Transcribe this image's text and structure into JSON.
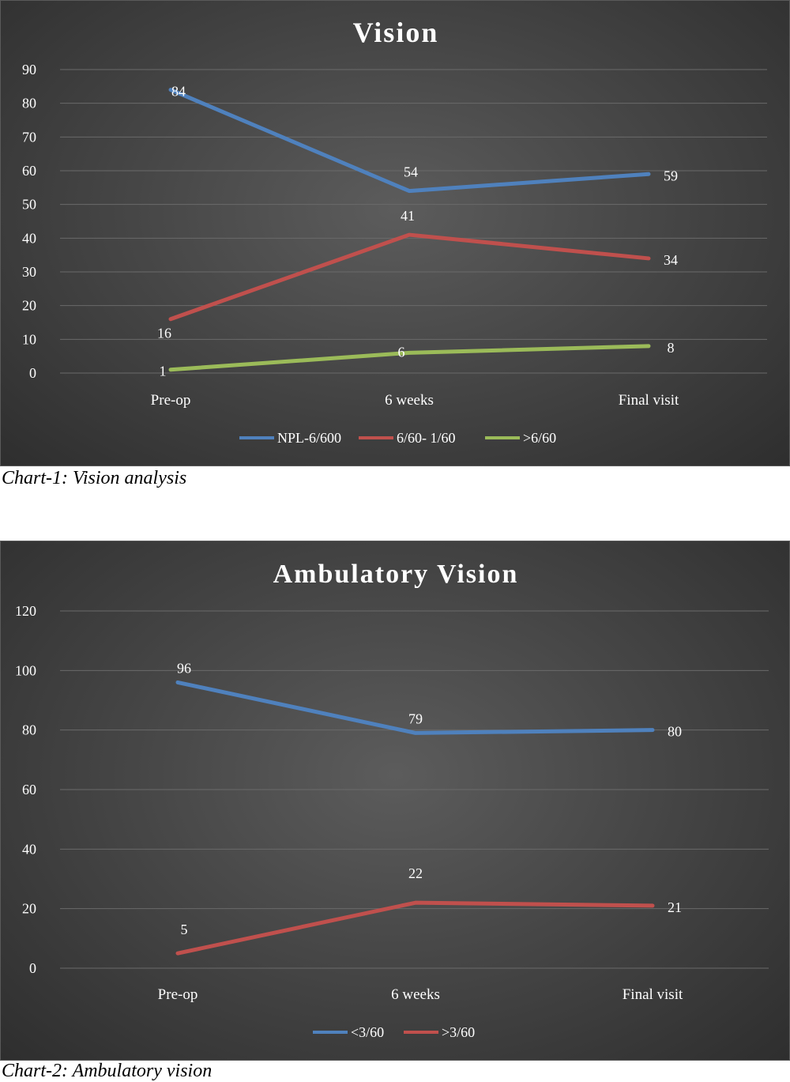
{
  "chart_data": [
    {
      "type": "line",
      "title": "Vision",
      "caption": "Chart-1: Vision analysis",
      "categories": [
        "Pre-op",
        "6 weeks",
        "Final visit"
      ],
      "series": [
        {
          "name": "NPL-6/600",
          "values": [
            84,
            54,
            59
          ],
          "color": "#4f81bd"
        },
        {
          "name": "6/60- 1/60",
          "values": [
            16,
            41,
            34
          ],
          "color": "#c0504d"
        },
        {
          "name": ">6/60",
          "values": [
            1,
            6,
            8
          ],
          "color": "#9bbb59"
        }
      ],
      "ylim": [
        0,
        90
      ],
      "yticks": [
        0,
        10,
        20,
        30,
        40,
        50,
        60,
        70,
        80,
        90
      ],
      "grid": true,
      "legend": "bottom",
      "data_labels": true,
      "xlabel": "",
      "ylabel": ""
    },
    {
      "type": "line",
      "title": "Ambulatory Vision",
      "caption": "Chart-2: Ambulatory vision",
      "categories": [
        "Pre-op",
        "6 weeks",
        "Final visit"
      ],
      "series": [
        {
          "name": "<3/60",
          "values": [
            96,
            79,
            80
          ],
          "color": "#4f81bd"
        },
        {
          "name": ">3/60",
          "values": [
            5,
            22,
            21
          ],
          "color": "#c0504d"
        }
      ],
      "ylim": [
        0,
        120
      ],
      "yticks": [
        0,
        20,
        40,
        60,
        80,
        100,
        120
      ],
      "grid": true,
      "legend": "bottom",
      "data_labels": true,
      "xlabel": "",
      "ylabel": ""
    }
  ]
}
